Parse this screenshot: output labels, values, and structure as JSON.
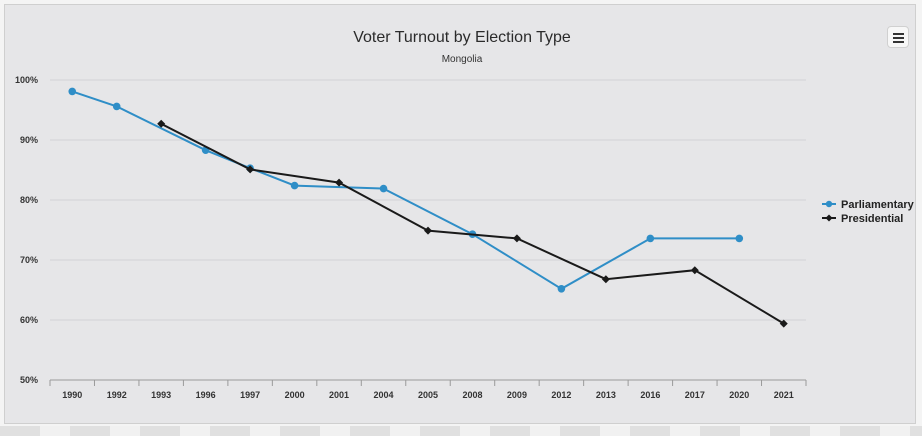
{
  "chart_data": {
    "type": "line",
    "title": "Voter Turnout by Election Type",
    "subtitle": "Mongolia",
    "categories": [
      "1990",
      "1992",
      "1993",
      "1996",
      "1997",
      "2000",
      "2001",
      "2004",
      "2005",
      "2008",
      "2009",
      "2012",
      "2013",
      "2016",
      "2017",
      "2020",
      "2021"
    ],
    "ylim": [
      50,
      100
    ],
    "yticks": [
      "50%",
      "60%",
      "70%",
      "80%",
      "90%",
      "100%"
    ],
    "ytick_values": [
      50,
      60,
      70,
      80,
      90,
      100
    ],
    "grid": true,
    "legend_position": "right",
    "series": [
      {
        "name": "Parliamentary",
        "color": "#2f8ec7",
        "marker": "circle",
        "values": [
          98.1,
          95.6,
          null,
          88.3,
          85.3,
          82.4,
          null,
          81.9,
          null,
          74.3,
          null,
          65.2,
          null,
          73.6,
          null,
          73.6,
          null
        ]
      },
      {
        "name": "Presidential",
        "color": "#1a1a1a",
        "marker": "diamond",
        "values": [
          null,
          null,
          92.7,
          null,
          85.1,
          null,
          82.9,
          null,
          74.9,
          null,
          73.6,
          null,
          66.8,
          null,
          68.3,
          null,
          59.4
        ]
      }
    ]
  },
  "icons": {
    "menu": "hamburger-menu-icon"
  }
}
